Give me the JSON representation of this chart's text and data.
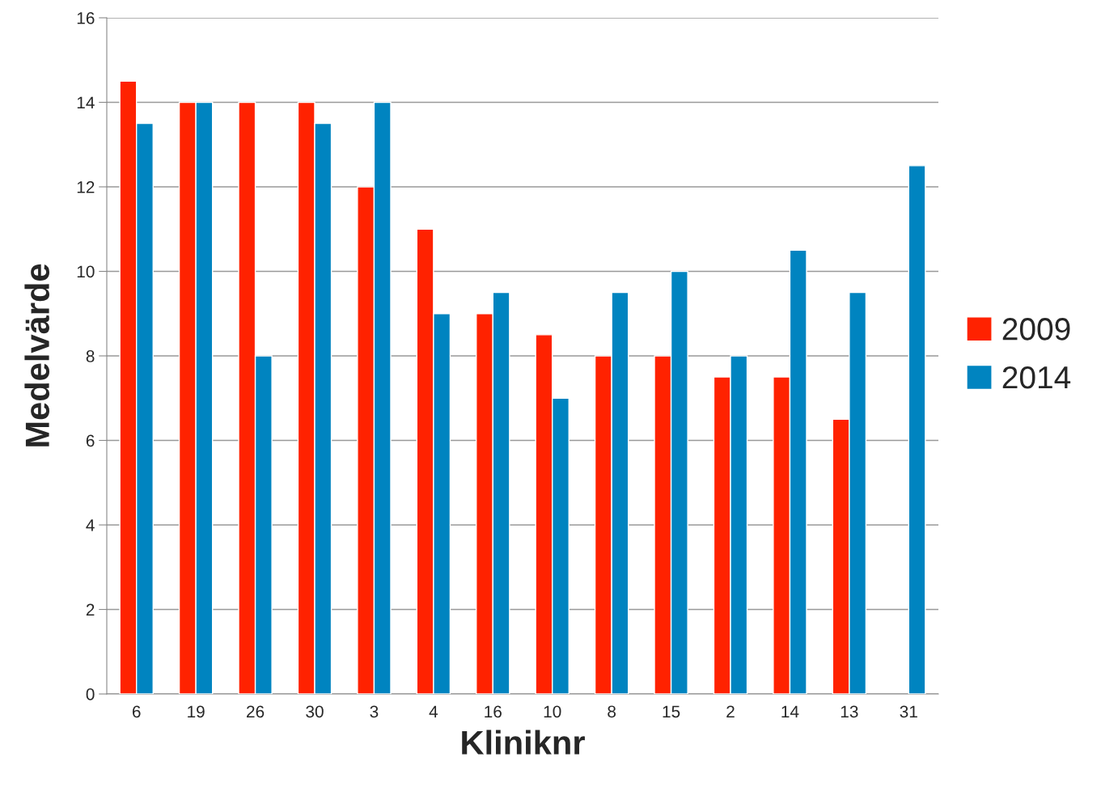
{
  "chart_data": {
    "type": "bar",
    "xlabel": "Kliniknr",
    "ylabel": "Medelvärde",
    "categories": [
      "6",
      "19",
      "26",
      "30",
      "3",
      "4",
      "16",
      "10",
      "8",
      "15",
      "2",
      "14",
      "13",
      "31"
    ],
    "series": [
      {
        "name": "2009",
        "color": "#ff2200",
        "values": [
          14.5,
          14,
          14,
          14,
          12,
          11,
          9,
          8.5,
          8,
          8,
          7.5,
          7.5,
          6.5,
          null
        ]
      },
      {
        "name": "2014",
        "color": "#0084c0",
        "values": [
          13.5,
          14,
          8,
          13.5,
          14,
          9,
          9.5,
          7,
          9.5,
          10,
          8,
          10.5,
          9.5,
          12.5
        ]
      }
    ],
    "ylim": [
      0,
      16
    ],
    "yticks": [
      0,
      2,
      4,
      6,
      8,
      10,
      12,
      14,
      16
    ],
    "grid": "y",
    "legend": "right"
  }
}
